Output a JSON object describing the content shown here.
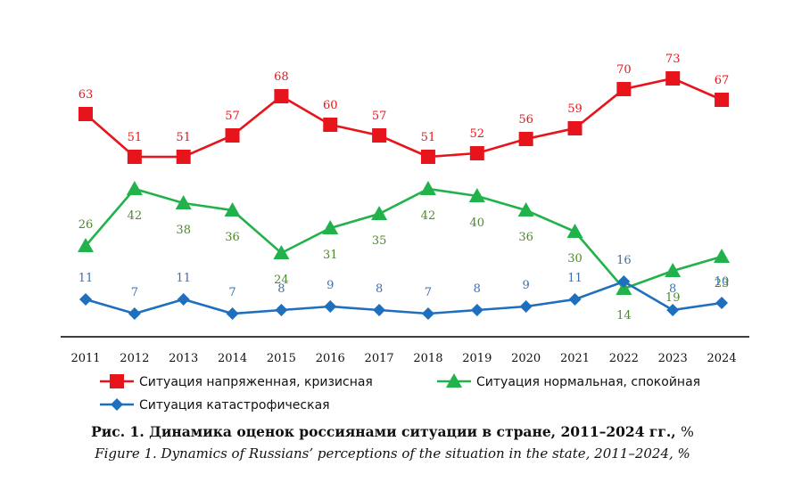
{
  "chart_data": {
    "type": "line",
    "categories": [
      "2011",
      "2012",
      "2013",
      "2014",
      "2015",
      "2016",
      "2017",
      "2018",
      "2019",
      "2020",
      "2021",
      "2022",
      "2023",
      "2024"
    ],
    "series": [
      {
        "name": "Ситуация напряженная, кризисная",
        "color": "#e8141b",
        "marker": "square",
        "values": [
          63,
          51,
          51,
          57,
          68,
          60,
          57,
          51,
          52,
          56,
          59,
          70,
          73,
          67
        ]
      },
      {
        "name": "Ситуация нормальная, спокойная",
        "color": "#21b24b",
        "marker": "triangle",
        "values": [
          26,
          42,
          38,
          36,
          24,
          31,
          35,
          42,
          40,
          36,
          30,
          14,
          19,
          23
        ]
      },
      {
        "name": "Ситуация катастрофическая",
        "color": "#1f6fbf",
        "marker": "diamond",
        "values": [
          11,
          7,
          11,
          7,
          8,
          9,
          8,
          7,
          8,
          9,
          11,
          16,
          8,
          10
        ]
      }
    ],
    "label_colors": [
      "#e8141b",
      "#4c8a2a",
      "#3a6fb0"
    ],
    "ylim": [
      0,
      80
    ],
    "legend_position": "bottom",
    "grid": false
  },
  "caption": {
    "ru_bold": "Рис. 1. Динамика оценок россиянами ситуации в стране, 2011–2024 гг.,",
    "ru_unit": "%",
    "en": "Figure 1. Dynamics of Russians’ perceptions of the situation in the state, 2011–2024, %"
  }
}
